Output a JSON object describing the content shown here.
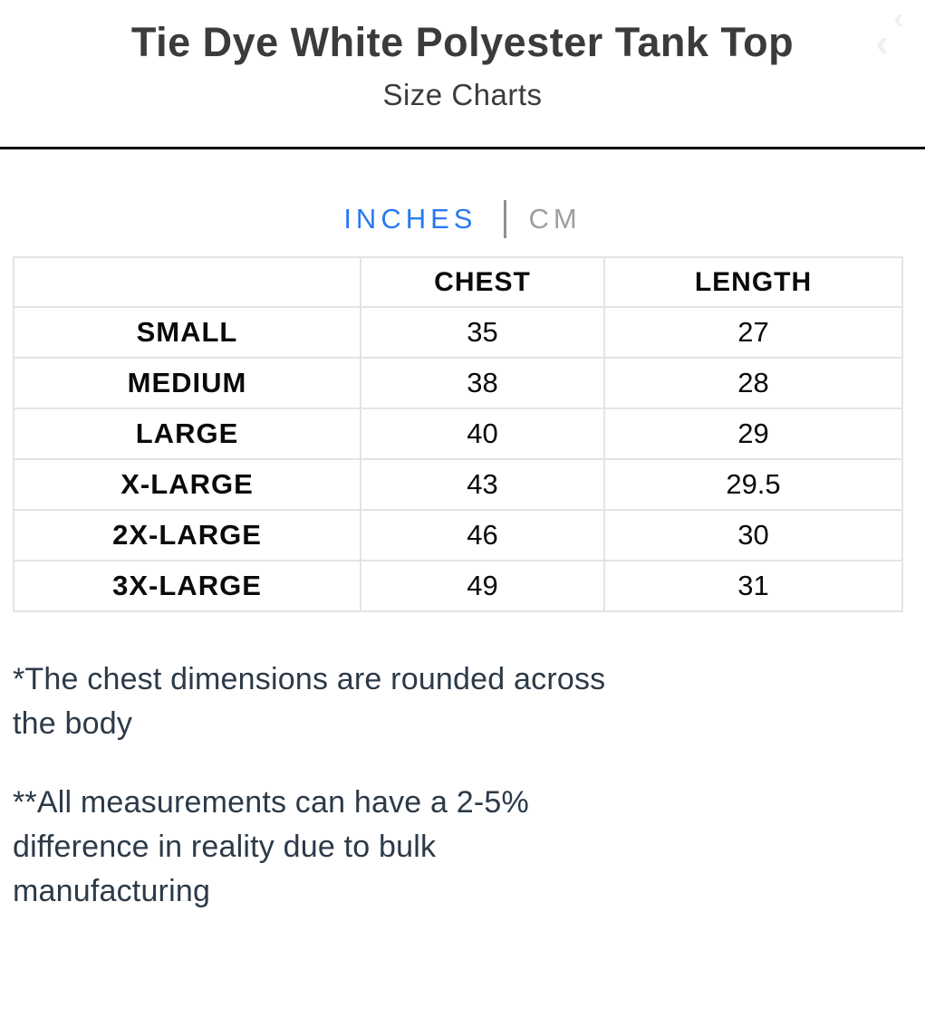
{
  "header": {
    "title": "Tie Dye White Polyester Tank Top",
    "subtitle": "Size Charts"
  },
  "carousel": {
    "prev_glyph": "‹"
  },
  "tabs": {
    "inches_label": "INCHES",
    "cm_label": "CM",
    "active": "INCHES"
  },
  "colors": {
    "accent_blue": "#2979f2",
    "inactive_gray": "#9e9e9e",
    "title_gray": "#3b3b3b",
    "note_slate": "#2c3a48",
    "table_border": "#e4e4e4",
    "divider_black": "#0d0d0d"
  },
  "table": {
    "headers": [
      "",
      "CHEST",
      "LENGTH"
    ],
    "rows": [
      [
        "SMALL",
        "35",
        "27"
      ],
      [
        "MEDIUM",
        "38",
        "28"
      ],
      [
        "LARGE",
        "40",
        "29"
      ],
      [
        "X-LARGE",
        "43",
        "29.5"
      ],
      [
        "2X-LARGE",
        "46",
        "30"
      ],
      [
        "3X-LARGE",
        "49",
        "31"
      ]
    ]
  },
  "notes": {
    "note1_lines": [
      "*The chest dimensions are rounded across",
      "the body"
    ],
    "note2_lines": [
      "**All measurements can have a 2-5%",
      "difference in reality due to bulk",
      "manufacturing"
    ]
  }
}
